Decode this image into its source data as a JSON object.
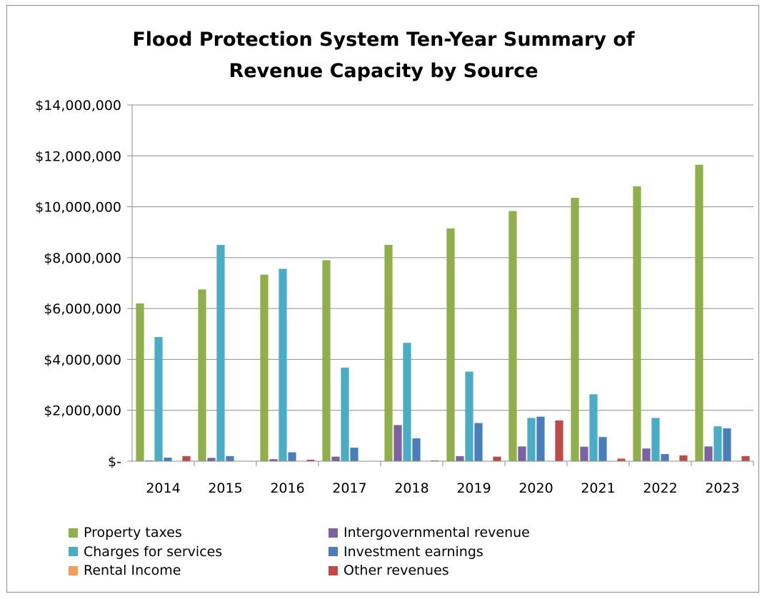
{
  "chart_data": {
    "type": "bar",
    "title": "Flood Protection System Ten-Year Summary of\nRevenue Capacity by Source",
    "xlabel": "",
    "ylabel": "",
    "ylim": [
      0,
      14000000
    ],
    "y_ticks": [
      0,
      2000000,
      4000000,
      6000000,
      8000000,
      10000000,
      12000000,
      14000000
    ],
    "y_tick_labels": [
      "$-",
      "$2,000,000",
      "$4,000,000",
      "$6,000,000",
      "$8,000,000",
      "$10,000,000",
      "$12,000,000",
      "$14,000,000"
    ],
    "grid": true,
    "legend_position": "bottom",
    "categories": [
      "2014",
      "2015",
      "2016",
      "2017",
      "2018",
      "2019",
      "2020",
      "2021",
      "2022",
      "2023"
    ],
    "series": [
      {
        "name": "Property taxes",
        "color": "#8faf4b",
        "values": [
          6200000,
          6750000,
          7330000,
          7900000,
          8500000,
          9150000,
          9830000,
          10350000,
          10800000,
          11650000
        ]
      },
      {
        "name": "Intergovernmental revenue",
        "color": "#7d62a1",
        "values": [
          30000,
          130000,
          80000,
          180000,
          1420000,
          200000,
          580000,
          570000,
          500000,
          580000
        ]
      },
      {
        "name": "Charges for services",
        "color": "#4aacc5",
        "values": [
          4880000,
          8500000,
          7560000,
          3680000,
          4650000,
          3520000,
          1700000,
          2630000,
          1700000,
          1370000
        ]
      },
      {
        "name": "Investment earnings",
        "color": "#4a7ebb",
        "values": [
          140000,
          200000,
          350000,
          530000,
          900000,
          1500000,
          1750000,
          950000,
          280000,
          1290000
        ]
      },
      {
        "name": "Rental Income",
        "color": "#f59d56",
        "values": [
          0,
          0,
          0,
          0,
          0,
          0,
          0,
          0,
          0,
          0
        ]
      },
      {
        "name": "Other revenues",
        "color": "#be4b48",
        "values": [
          200000,
          0,
          60000,
          0,
          30000,
          180000,
          1600000,
          100000,
          230000,
          200000
        ]
      }
    ]
  }
}
